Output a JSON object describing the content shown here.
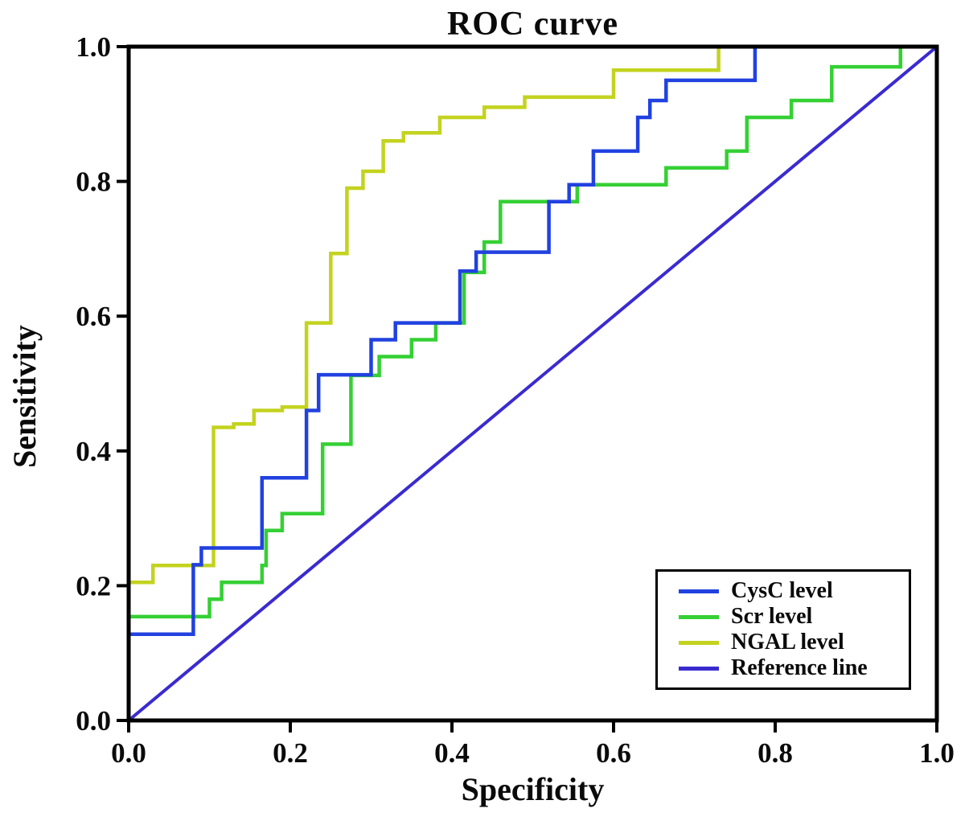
{
  "figure": {
    "title": "ROC curve",
    "x_axis_label": "Specificity",
    "y_axis_label": "Sensitivity"
  },
  "legend": {
    "items": [
      {
        "label": "CysC level",
        "color": "#2141e0"
      },
      {
        "label": "Scr level",
        "color": "#34d034"
      },
      {
        "label": "NGAL level",
        "color": "#c3d31f"
      },
      {
        "label": "Reference line",
        "color": "#3a2bd0"
      }
    ]
  },
  "chart_data": {
    "type": "line",
    "title": "ROC curve",
    "xlabel": "Specificity",
    "ylabel": "Sensitivity",
    "xlim": [
      0,
      1
    ],
    "ylim": [
      0,
      1
    ],
    "grid": false,
    "legend_position": "lower right",
    "x_ticks": [
      {
        "v": 0.0,
        "label": "0.0"
      },
      {
        "v": 0.2,
        "label": "0.2"
      },
      {
        "v": 0.4,
        "label": "0.4"
      },
      {
        "v": 0.6,
        "label": "0.6"
      },
      {
        "v": 0.8,
        "label": "0.8"
      },
      {
        "v": 1.0,
        "label": "1.0"
      }
    ],
    "y_ticks": [
      {
        "v": 0.0,
        "label": "0.0"
      },
      {
        "v": 0.2,
        "label": "0.2"
      },
      {
        "v": 0.4,
        "label": "0.4"
      },
      {
        "v": 0.6,
        "label": "0.6"
      },
      {
        "v": 0.8,
        "label": "0.8"
      },
      {
        "v": 1.0,
        "label": "1.0"
      }
    ],
    "series": [
      {
        "name": "CysC level",
        "color": "#2141e0",
        "line_width": 4.5,
        "points": [
          [
            0.0,
            0.128
          ],
          [
            0.08,
            0.128
          ],
          [
            0.08,
            0.231
          ],
          [
            0.09,
            0.231
          ],
          [
            0.09,
            0.256
          ],
          [
            0.165,
            0.256
          ],
          [
            0.165,
            0.36
          ],
          [
            0.22,
            0.36
          ],
          [
            0.22,
            0.46
          ],
          [
            0.235,
            0.46
          ],
          [
            0.235,
            0.513
          ],
          [
            0.3,
            0.513
          ],
          [
            0.3,
            0.565
          ],
          [
            0.33,
            0.565
          ],
          [
            0.33,
            0.59
          ],
          [
            0.41,
            0.59
          ],
          [
            0.41,
            0.667
          ],
          [
            0.43,
            0.667
          ],
          [
            0.43,
            0.695
          ],
          [
            0.52,
            0.695
          ],
          [
            0.52,
            0.77
          ],
          [
            0.545,
            0.77
          ],
          [
            0.545,
            0.795
          ],
          [
            0.575,
            0.795
          ],
          [
            0.575,
            0.845
          ],
          [
            0.63,
            0.845
          ],
          [
            0.63,
            0.895
          ],
          [
            0.645,
            0.895
          ],
          [
            0.645,
            0.92
          ],
          [
            0.665,
            0.92
          ],
          [
            0.665,
            0.95
          ],
          [
            0.775,
            0.95
          ],
          [
            0.775,
            1.0
          ],
          [
            1.0,
            1.0
          ]
        ]
      },
      {
        "name": "Scr level",
        "color": "#34d034",
        "line_width": 4.5,
        "points": [
          [
            0.0,
            0.154
          ],
          [
            0.1,
            0.154
          ],
          [
            0.1,
            0.18
          ],
          [
            0.115,
            0.18
          ],
          [
            0.115,
            0.205
          ],
          [
            0.165,
            0.205
          ],
          [
            0.165,
            0.23
          ],
          [
            0.17,
            0.23
          ],
          [
            0.17,
            0.282
          ],
          [
            0.19,
            0.282
          ],
          [
            0.19,
            0.307
          ],
          [
            0.24,
            0.307
          ],
          [
            0.24,
            0.41
          ],
          [
            0.275,
            0.41
          ],
          [
            0.275,
            0.512
          ],
          [
            0.31,
            0.512
          ],
          [
            0.31,
            0.54
          ],
          [
            0.35,
            0.54
          ],
          [
            0.35,
            0.565
          ],
          [
            0.38,
            0.565
          ],
          [
            0.38,
            0.59
          ],
          [
            0.415,
            0.59
          ],
          [
            0.415,
            0.665
          ],
          [
            0.44,
            0.665
          ],
          [
            0.44,
            0.71
          ],
          [
            0.46,
            0.71
          ],
          [
            0.46,
            0.77
          ],
          [
            0.555,
            0.77
          ],
          [
            0.555,
            0.795
          ],
          [
            0.665,
            0.795
          ],
          [
            0.665,
            0.82
          ],
          [
            0.74,
            0.82
          ],
          [
            0.74,
            0.845
          ],
          [
            0.765,
            0.845
          ],
          [
            0.765,
            0.895
          ],
          [
            0.82,
            0.895
          ],
          [
            0.82,
            0.92
          ],
          [
            0.87,
            0.92
          ],
          [
            0.87,
            0.97
          ],
          [
            0.955,
            0.97
          ],
          [
            0.955,
            1.0
          ],
          [
            1.0,
            1.0
          ]
        ]
      },
      {
        "name": "NGAL level",
        "color": "#c3d31f",
        "line_width": 4.5,
        "points": [
          [
            0.0,
            0.205
          ],
          [
            0.03,
            0.205
          ],
          [
            0.03,
            0.23
          ],
          [
            0.105,
            0.23
          ],
          [
            0.105,
            0.435
          ],
          [
            0.13,
            0.435
          ],
          [
            0.13,
            0.44
          ],
          [
            0.155,
            0.44
          ],
          [
            0.155,
            0.46
          ],
          [
            0.19,
            0.46
          ],
          [
            0.19,
            0.465
          ],
          [
            0.22,
            0.465
          ],
          [
            0.22,
            0.59
          ],
          [
            0.25,
            0.59
          ],
          [
            0.25,
            0.693
          ],
          [
            0.27,
            0.693
          ],
          [
            0.27,
            0.79
          ],
          [
            0.29,
            0.79
          ],
          [
            0.29,
            0.815
          ],
          [
            0.315,
            0.815
          ],
          [
            0.315,
            0.86
          ],
          [
            0.34,
            0.86
          ],
          [
            0.34,
            0.872
          ],
          [
            0.385,
            0.872
          ],
          [
            0.385,
            0.895
          ],
          [
            0.44,
            0.895
          ],
          [
            0.44,
            0.91
          ],
          [
            0.49,
            0.91
          ],
          [
            0.49,
            0.925
          ],
          [
            0.6,
            0.925
          ],
          [
            0.6,
            0.965
          ],
          [
            0.73,
            0.965
          ],
          [
            0.73,
            1.0
          ],
          [
            1.0,
            1.0
          ]
        ]
      },
      {
        "name": "Reference line",
        "color": "#3a2bd0",
        "line_width": 4,
        "points": [
          [
            0.0,
            0.0
          ],
          [
            1.0,
            1.0
          ]
        ]
      }
    ]
  }
}
